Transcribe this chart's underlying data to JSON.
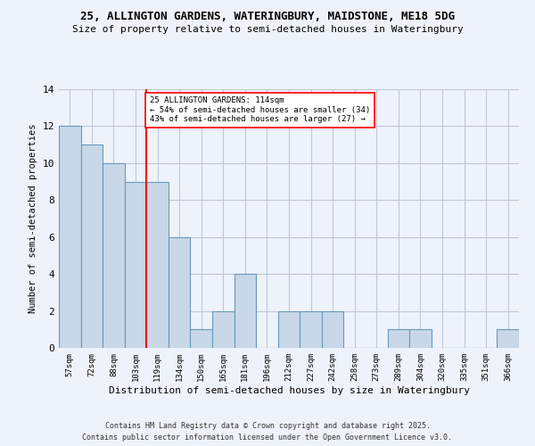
{
  "title_line1": "25, ALLINGTON GARDENS, WATERINGBURY, MAIDSTONE, ME18 5DG",
  "title_line2": "Size of property relative to semi-detached houses in Wateringbury",
  "xlabel": "Distribution of semi-detached houses by size in Wateringbury",
  "ylabel": "Number of semi-detached properties",
  "categories": [
    "57sqm",
    "72sqm",
    "88sqm",
    "103sqm",
    "119sqm",
    "134sqm",
    "150sqm",
    "165sqm",
    "181sqm",
    "196sqm",
    "212sqm",
    "227sqm",
    "242sqm",
    "258sqm",
    "273sqm",
    "289sqm",
    "304sqm",
    "320sqm",
    "335sqm",
    "351sqm",
    "366sqm"
  ],
  "values": [
    12,
    11,
    10,
    9,
    9,
    6,
    1,
    2,
    4,
    0,
    2,
    2,
    2,
    0,
    0,
    1,
    1,
    0,
    0,
    0,
    1
  ],
  "bar_color": "#c8d8e8",
  "bar_edge_color": "#6699bb",
  "highlight_index": 4,
  "annotation_text": "25 ALLINGTON GARDENS: 114sqm\n← 54% of semi-detached houses are smaller (34)\n43% of semi-detached houses are larger (27) →",
  "ylim": [
    0,
    14
  ],
  "yticks": [
    0,
    2,
    4,
    6,
    8,
    10,
    12,
    14
  ],
  "footer_line1": "Contains HM Land Registry data © Crown copyright and database right 2025.",
  "footer_line2": "Contains public sector information licensed under the Open Government Licence v3.0.",
  "background_color": "#eef2fb",
  "grid_color": "#c0c8d8"
}
